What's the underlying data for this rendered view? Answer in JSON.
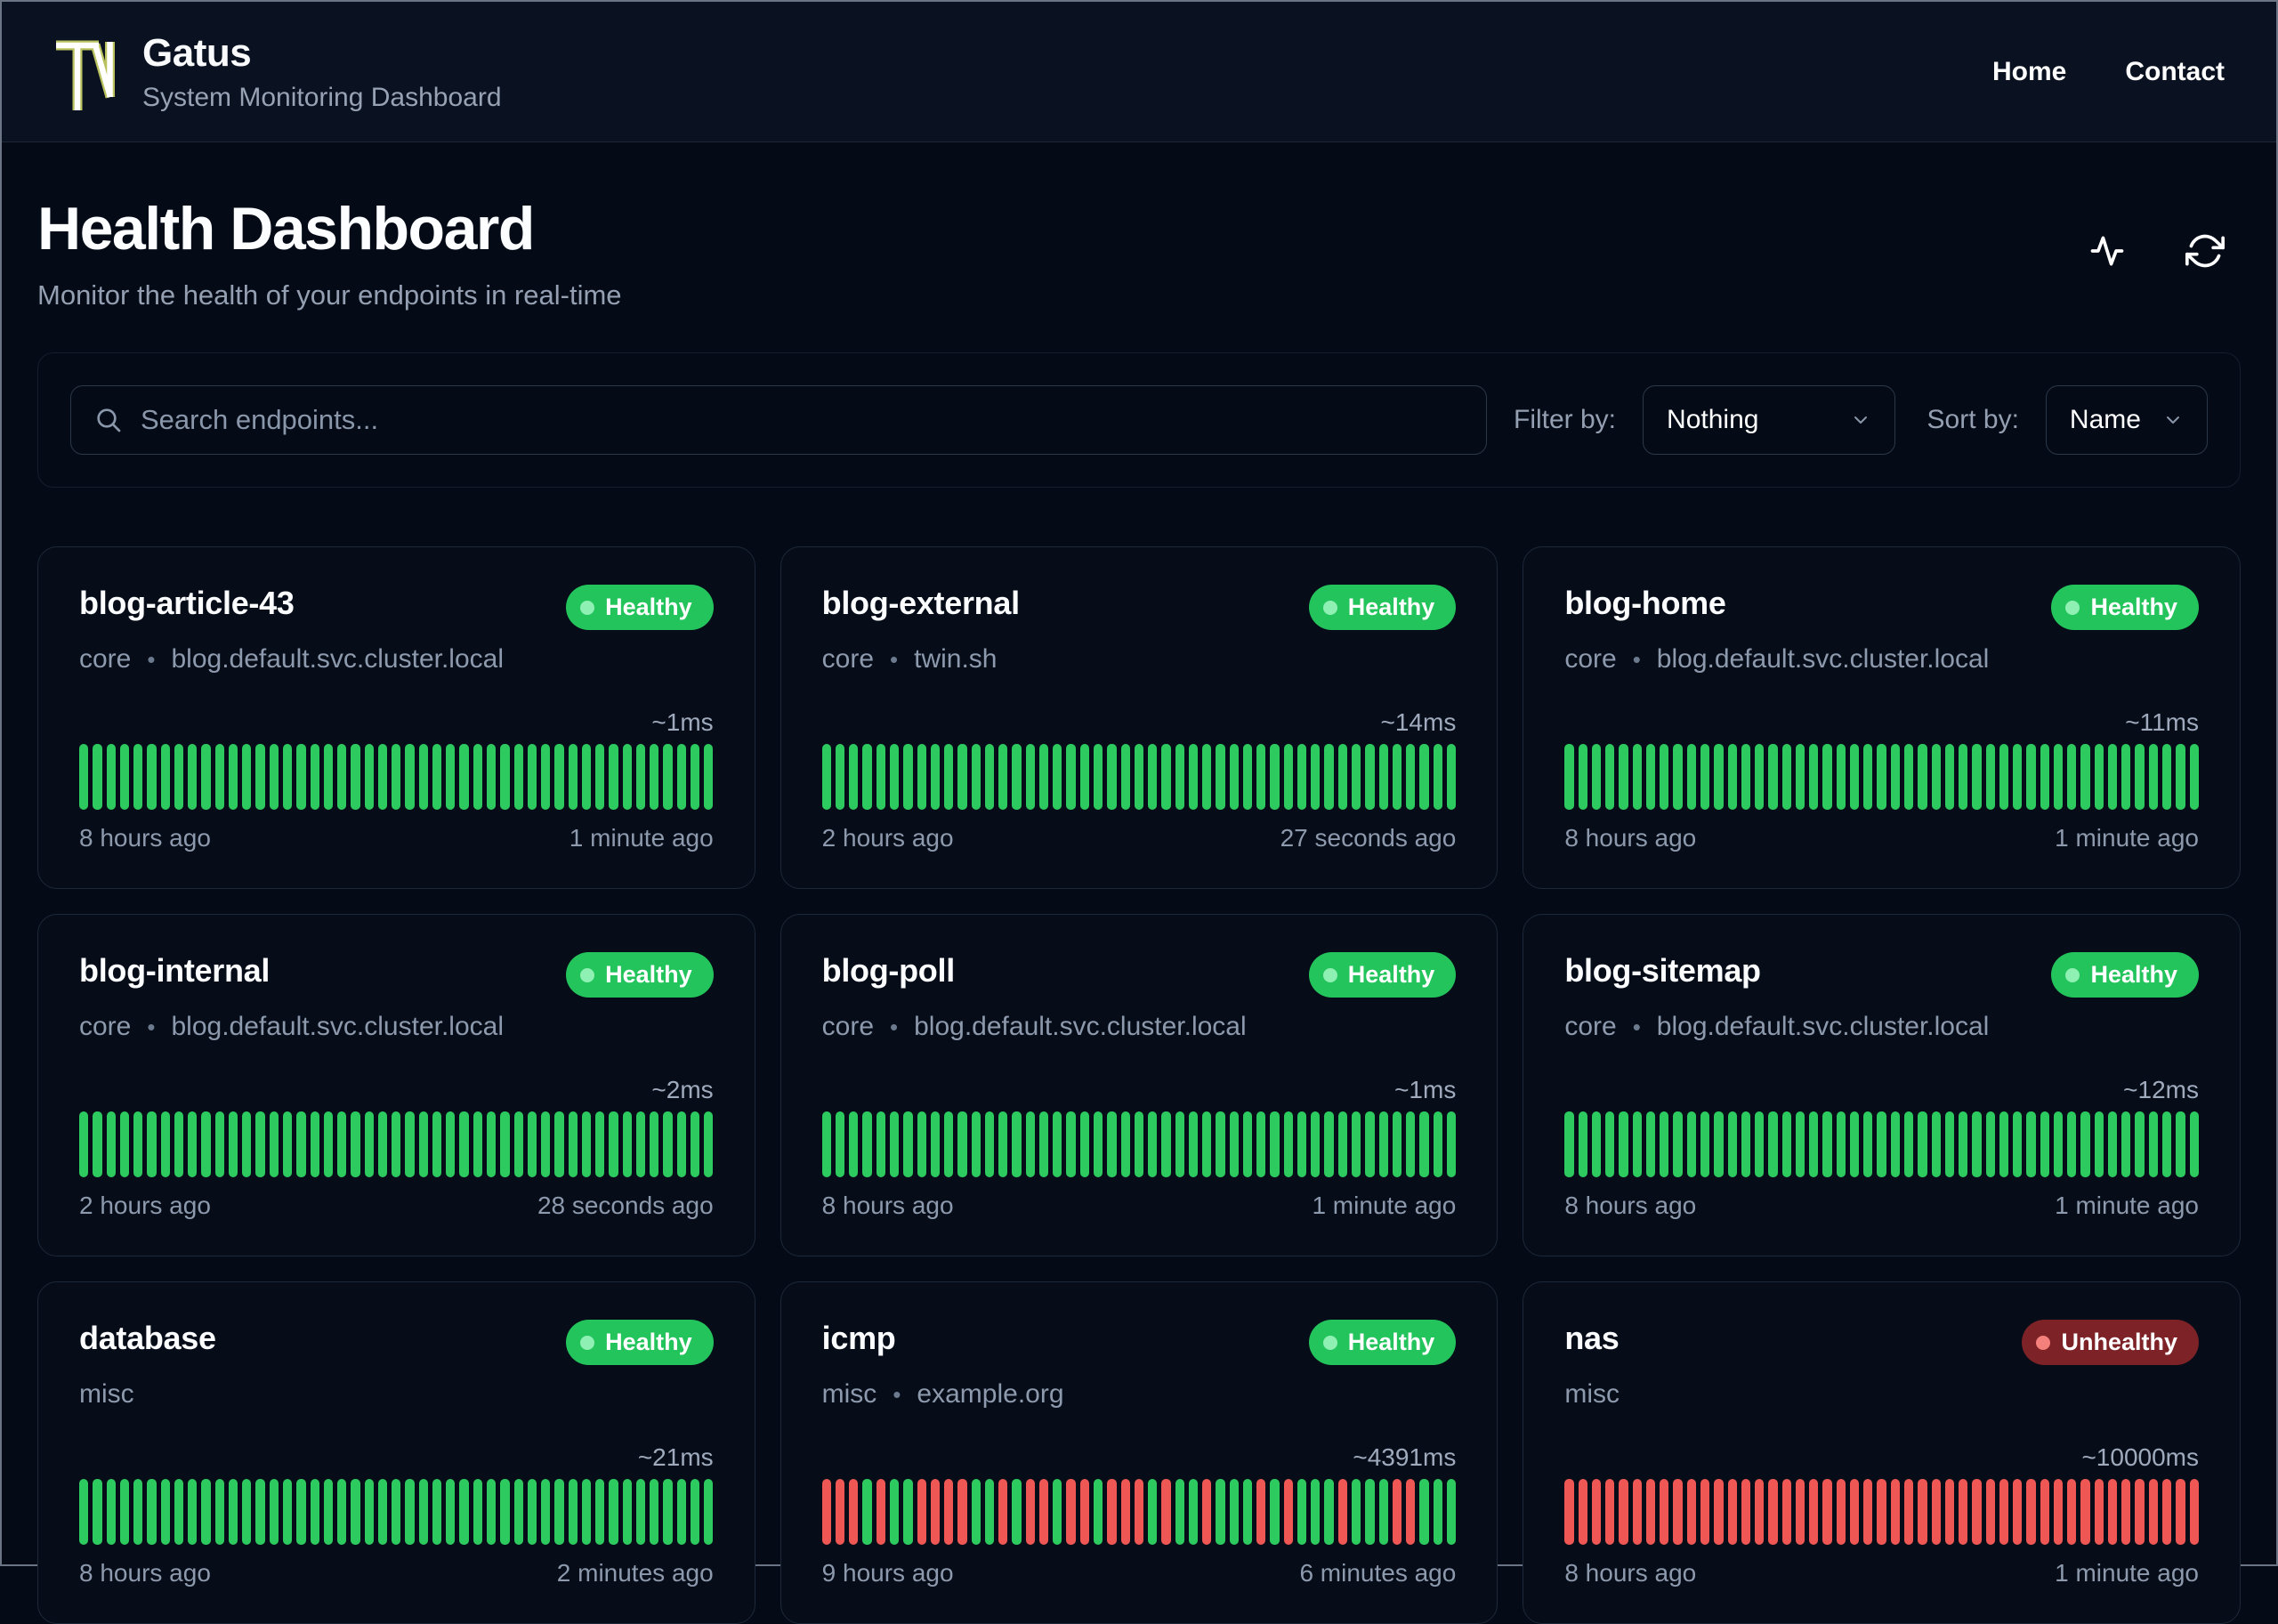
{
  "header": {
    "brand": "Gatus",
    "tagline": "System Monitoring Dashboard",
    "nav": [
      {
        "label": "Home"
      },
      {
        "label": "Contact"
      }
    ]
  },
  "page": {
    "title": "Health Dashboard",
    "subtitle": "Monitor the health of your endpoints in real-time"
  },
  "toolbar": {
    "search_placeholder": "Search endpoints...",
    "filter_label": "Filter by:",
    "filter_value": "Nothing",
    "sort_label": "Sort by:",
    "sort_value": "Name"
  },
  "meta_separator": "•",
  "status_colors": {
    "up_bar": "#2dcb5f",
    "down_bar": "#ee5753",
    "healthy_badge": "#24c45c",
    "unhealthy_badge": "#7d2226",
    "healthy_dot": "#8ff0b4",
    "unhealthy_dot": "#f4807c",
    "logo_outline": "#b9c25e"
  },
  "endpoints": [
    {
      "name": "blog-article-43",
      "group": "core",
      "host": "blog.default.svc.cluster.local",
      "status": "Healthy",
      "latency": "~1ms",
      "oldest": "8 hours ago",
      "newest": "1 minute ago",
      "history": "uuuuuuuuuuuuuuuuuuuuuuuuuuuuuuuuuuuuuuuuuuuuuuu"
    },
    {
      "name": "blog-external",
      "group": "core",
      "host": "twin.sh",
      "status": "Healthy",
      "latency": "~14ms",
      "oldest": "2 hours ago",
      "newest": "27 seconds ago",
      "history": "uuuuuuuuuuuuuuuuuuuuuuuuuuuuuuuuuuuuuuuuuuuuuuu"
    },
    {
      "name": "blog-home",
      "group": "core",
      "host": "blog.default.svc.cluster.local",
      "status": "Healthy",
      "latency": "~11ms",
      "oldest": "8 hours ago",
      "newest": "1 minute ago",
      "history": "uuuuuuuuuuuuuuuuuuuuuuuuuuuuuuuuuuuuuuuuuuuuuuu"
    },
    {
      "name": "blog-internal",
      "group": "core",
      "host": "blog.default.svc.cluster.local",
      "status": "Healthy",
      "latency": "~2ms",
      "oldest": "2 hours ago",
      "newest": "28 seconds ago",
      "history": "uuuuuuuuuuuuuuuuuuuuuuuuuuuuuuuuuuuuuuuuuuuuuuu"
    },
    {
      "name": "blog-poll",
      "group": "core",
      "host": "blog.default.svc.cluster.local",
      "status": "Healthy",
      "latency": "~1ms",
      "oldest": "8 hours ago",
      "newest": "1 minute ago",
      "history": "uuuuuuuuuuuuuuuuuuuuuuuuuuuuuuuuuuuuuuuuuuuuuuu"
    },
    {
      "name": "blog-sitemap",
      "group": "core",
      "host": "blog.default.svc.cluster.local",
      "status": "Healthy",
      "latency": "~12ms",
      "oldest": "8 hours ago",
      "newest": "1 minute ago",
      "history": "uuuuuuuuuuuuuuuuuuuuuuuuuuuuuuuuuuuuuuuuuuuuuuu"
    },
    {
      "name": "database",
      "group": "misc",
      "host": "",
      "status": "Healthy",
      "latency": "~21ms",
      "oldest": "8 hours ago",
      "newest": "2 minutes ago",
      "history": "uuuuuuuuuuuuuuuuuuuuuuuuuuuuuuuuuuuuuuuuuuuuuuu"
    },
    {
      "name": "icmp",
      "group": "misc",
      "host": "example.org",
      "status": "Healthy",
      "latency": "~4391ms",
      "oldest": "9 hours ago",
      "newest": "6 minutes ago",
      "history": "ddduduudddduududdudduddduduuduuududuuuduuudduuu"
    },
    {
      "name": "nas",
      "group": "misc",
      "host": "",
      "status": "Unhealthy",
      "latency": "~10000ms",
      "oldest": "8 hours ago",
      "newest": "1 minute ago",
      "history": "ddddddddddddddddddddddddddddddddddddddddddddddd"
    }
  ]
}
